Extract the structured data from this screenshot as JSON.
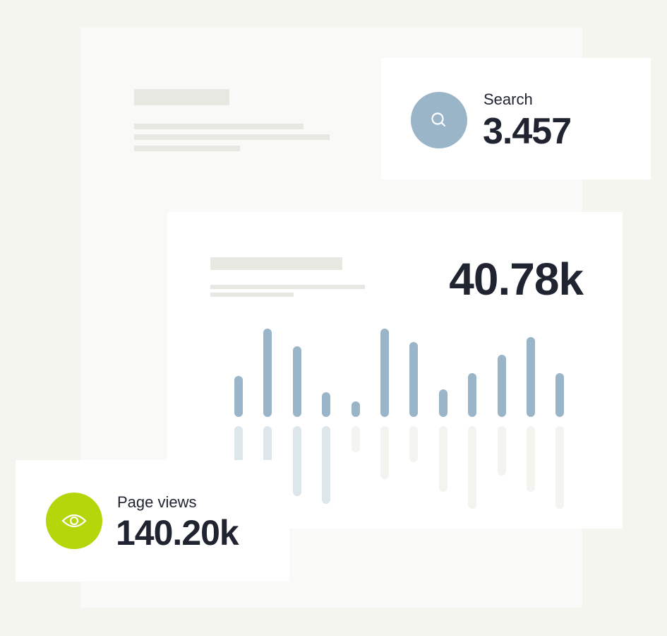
{
  "colors": {
    "background": "#f5f5f0",
    "panel": "#f9f9f7",
    "placeholder": "#e8e8e3",
    "search_accent": "#9bb5c8",
    "pageviews_accent": "#b5d60a",
    "bar_primary": "#9bb5c8",
    "bar_secondary_blue": "#dde6eb",
    "bar_secondary_neutral": "#f3f4ef",
    "text": "#1f2430"
  },
  "search_card": {
    "icon": "search-icon",
    "label": "Search",
    "value": "3.457"
  },
  "chart_card": {
    "value": "40.78k"
  },
  "pageviews_card": {
    "icon": "eye-icon",
    "label": "Page views",
    "value": "140.20k"
  },
  "chart_data": {
    "type": "bar",
    "upper_values": [
      58,
      125,
      100,
      35,
      22,
      125,
      106,
      39,
      62,
      88,
      113,
      62
    ],
    "lower_values": [
      60,
      60,
      99,
      110,
      37,
      75,
      51,
      93,
      117,
      70,
      93,
      117
    ],
    "lower_highlighted_count": 4,
    "grid": false,
    "axes": false
  }
}
